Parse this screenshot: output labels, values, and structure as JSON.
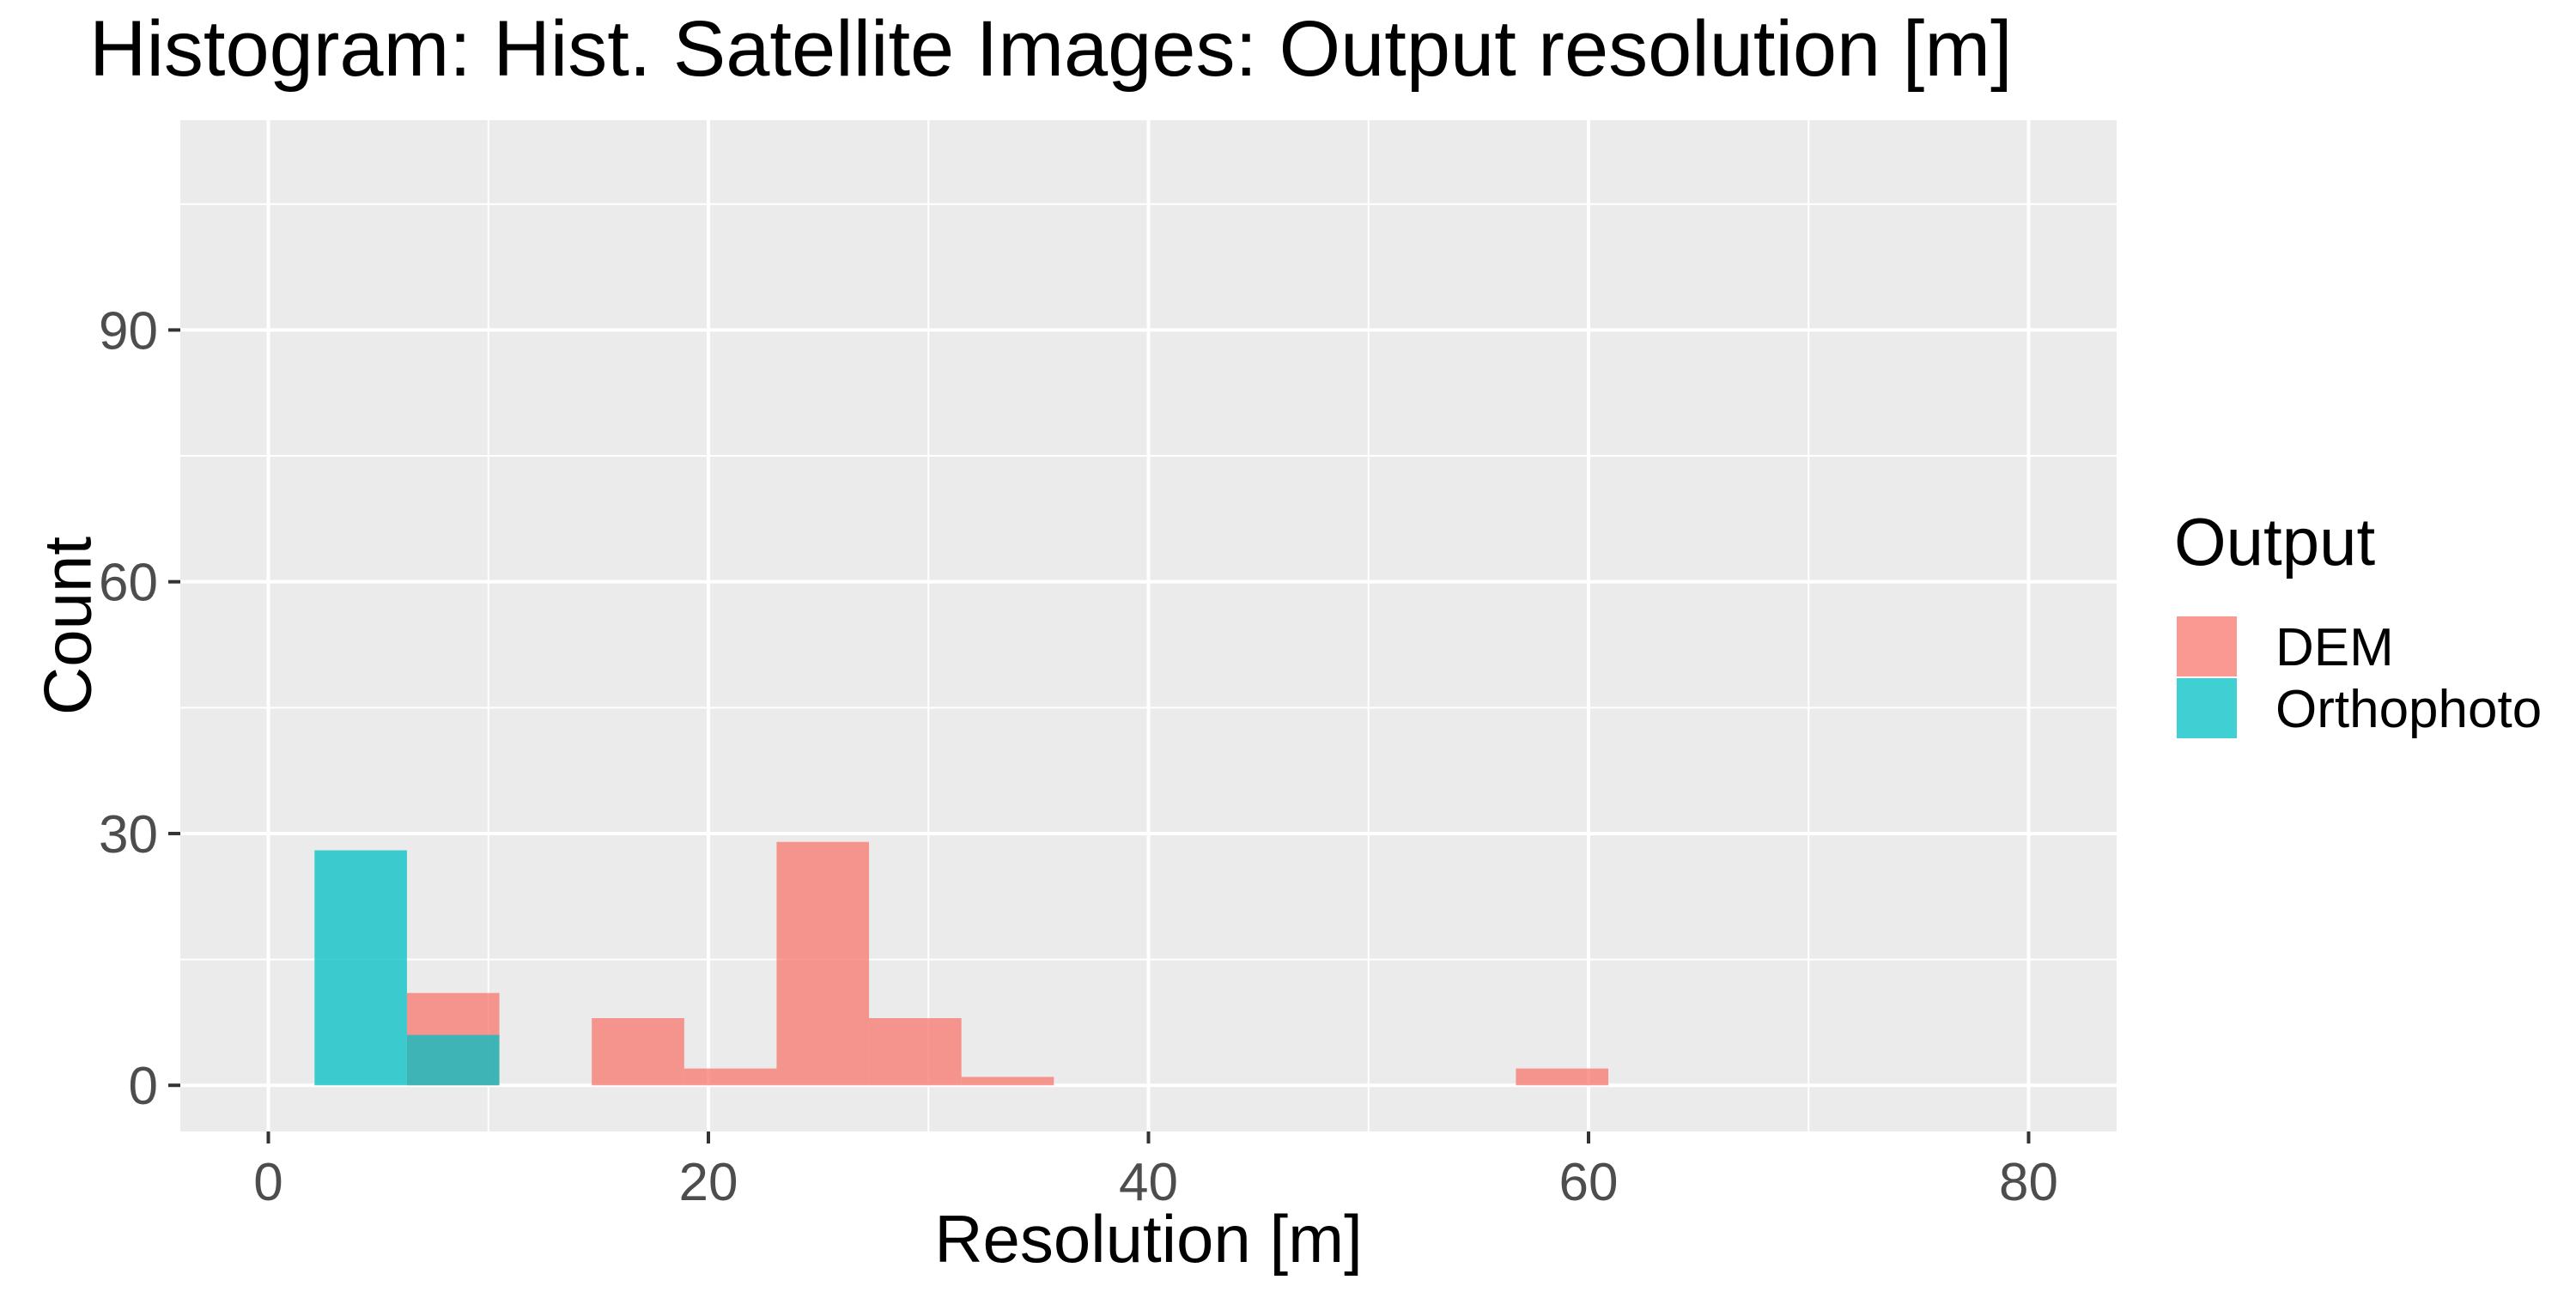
{
  "chart_data": {
    "type": "bar",
    "title": "Histogram: Hist. Satellite Images: Output resolution [m]",
    "xlabel": "Resolution [m]",
    "ylabel": "Count",
    "xlim": [
      -4.0,
      84.0
    ],
    "ylim": [
      -5.5,
      115
    ],
    "x_ticks": [
      0,
      20,
      40,
      60,
      80
    ],
    "y_ticks": [
      0,
      30,
      60,
      90
    ],
    "grid": true,
    "legend_title": "Output",
    "legend_position": "right",
    "series": [
      {
        "name": "DEM",
        "color": "#F8766D",
        "bins": [
          {
            "x0": 6.3,
            "x1": 10.5,
            "count": 11
          },
          {
            "x0": 14.7,
            "x1": 18.9,
            "count": 8
          },
          {
            "x0": 18.9,
            "x1": 23.1,
            "count": 2
          },
          {
            "x0": 23.1,
            "x1": 27.3,
            "count": 29
          },
          {
            "x0": 27.3,
            "x1": 31.5,
            "count": 8
          },
          {
            "x0": 31.5,
            "x1": 35.7,
            "count": 1
          },
          {
            "x0": 56.7,
            "x1": 60.9,
            "count": 2
          }
        ]
      },
      {
        "name": "Orthophoto",
        "color": "#00BFC4",
        "bins": [
          {
            "x0": 2.1,
            "x1": 6.3,
            "count": 28
          },
          {
            "x0": 6.3,
            "x1": 10.5,
            "count": 6
          }
        ]
      }
    ]
  }
}
